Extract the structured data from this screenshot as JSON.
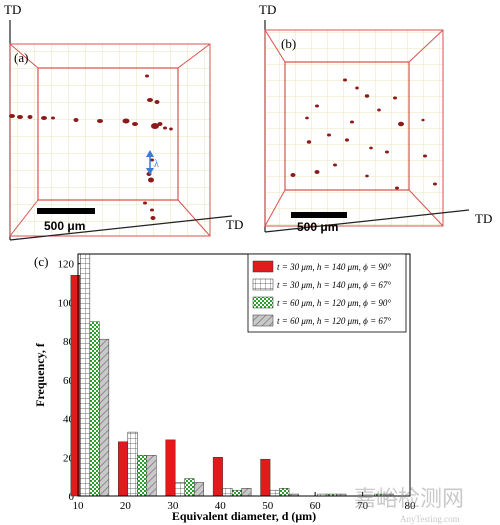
{
  "panel_a": {
    "label": "(a)",
    "axis_top": "TD",
    "axis_right": "TD",
    "scale_bar": "500 μm",
    "lambda": "λ"
  },
  "panel_b": {
    "label": "(b)",
    "axis_top": "TD",
    "axis_right": "TD",
    "scale_bar": "500 μm"
  },
  "panel_c": {
    "label": "(c)"
  },
  "watermark": {
    "text": "嘉峪检测网",
    "url": "AnyTesting.com"
  },
  "colors": {
    "red": "#e31a1c",
    "green": "#2ca02c",
    "gray": "#9a9a9a",
    "frame": "#d9534f",
    "grid": "#e9e3b8"
  },
  "chart_data": {
    "type": "bar",
    "xlabel": "Equivalent diameter, d (μm)",
    "ylabel": "Frequency, f",
    "xlim": [
      10,
      80
    ],
    "ylim": [
      0,
      125
    ],
    "xticks": [
      10,
      20,
      30,
      40,
      50,
      60,
      70,
      80
    ],
    "yticks": [
      0,
      20,
      40,
      60,
      80,
      100,
      120
    ],
    "categories": [
      12.5,
      22.5,
      32.5,
      42.5,
      52.5,
      62.5,
      72.5
    ],
    "series": [
      {
        "name": "t = 30 μm, h = 140 μm, ϕ = 90°",
        "pattern": "solid-red",
        "values": [
          114,
          28,
          29,
          20,
          19,
          0,
          0
        ]
      },
      {
        "name": "t = 30 μm, h = 140 μm, ϕ = 67°",
        "pattern": "grid-white",
        "values": [
          125,
          33,
          7,
          4,
          3,
          1,
          0
        ]
      },
      {
        "name": "t = 60 μm, h = 120 μm, ϕ = 90°",
        "pattern": "checker-green",
        "values": [
          90,
          21,
          9,
          3,
          4,
          1,
          1
        ]
      },
      {
        "name": "t = 60 μm, h = 120 μm, ϕ = 67°",
        "pattern": "hatch-gray",
        "values": [
          81,
          21,
          7,
          4,
          1,
          1,
          1
        ]
      }
    ]
  }
}
